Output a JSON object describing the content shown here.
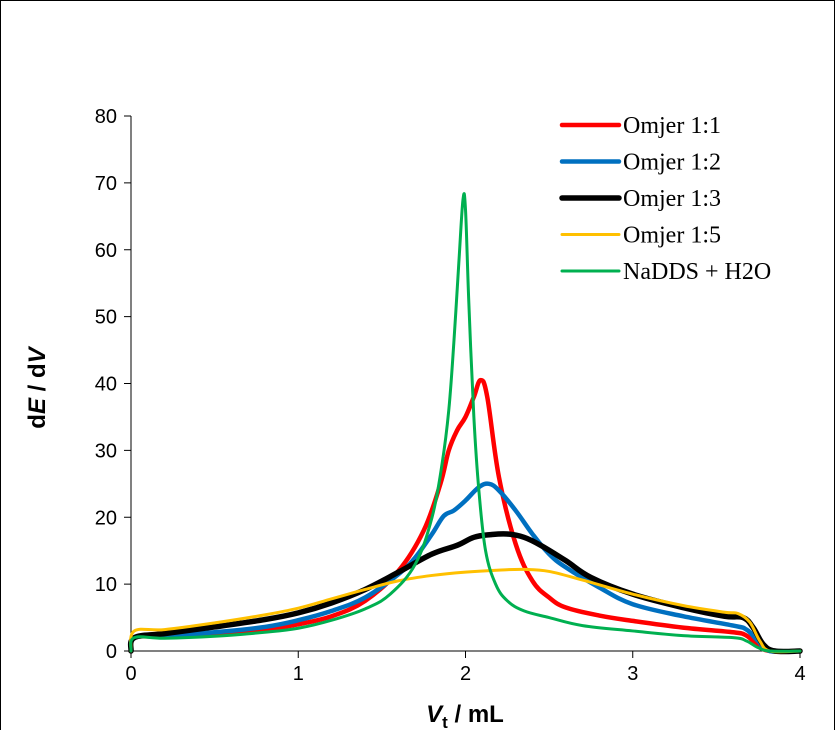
{
  "chart_data": {
    "type": "line",
    "title": "",
    "xlabel": {
      "main": "V",
      "sub": "t",
      "rest": " / mL"
    },
    "ylabel": {
      "pre": "d",
      "e": "E",
      "mid": " / d",
      "v": "V"
    },
    "xlim": [
      0,
      4
    ],
    "ylim": [
      0,
      80
    ],
    "x_ticks": [
      0,
      1,
      2,
      3,
      4
    ],
    "y_ticks": [
      0,
      10,
      20,
      30,
      40,
      50,
      60,
      70,
      80
    ],
    "grid": false,
    "legend_position": "top-right",
    "series": [
      {
        "name": "Omjer 1:1",
        "color": "#ff0000",
        "width": 4.5,
        "x": [
          0,
          0.02,
          0.2,
          0.5,
          0.8,
          1.0,
          1.2,
          1.4,
          1.6,
          1.75,
          1.85,
          1.9,
          1.95,
          2.0,
          2.05,
          2.09,
          2.13,
          2.2,
          2.3,
          2.4,
          2.5,
          2.6,
          2.8,
          3.0,
          3.3,
          3.6,
          3.68,
          3.75,
          3.82,
          4.0
        ],
        "y": [
          0,
          2,
          2.2,
          2.6,
          3.2,
          4.0,
          5.2,
          7.5,
          12,
          18,
          25,
          30,
          33,
          35,
          38,
          40.5,
          38,
          26,
          16,
          10.5,
          8,
          6.5,
          5.3,
          4.5,
          3.5,
          2.8,
          2.3,
          0.8,
          0,
          0
        ]
      },
      {
        "name": "Omjer 1:2",
        "color": "#0070c0",
        "width": 4.5,
        "x": [
          0,
          0.02,
          0.2,
          0.5,
          0.8,
          1.0,
          1.2,
          1.4,
          1.6,
          1.7,
          1.8,
          1.87,
          1.93,
          2.0,
          2.08,
          2.14,
          2.2,
          2.3,
          2.4,
          2.5,
          2.6,
          2.8,
          3.0,
          3.3,
          3.6,
          3.68,
          3.75,
          3.82,
          4.0
        ],
        "y": [
          0,
          2,
          2.3,
          2.8,
          3.6,
          4.6,
          6.0,
          8.0,
          11.5,
          14,
          17.5,
          20.2,
          21,
          22.5,
          24.5,
          25,
          24,
          21,
          17.5,
          14.5,
          12.5,
          9.5,
          7,
          5.2,
          3.8,
          3.2,
          1.5,
          0,
          0
        ]
      },
      {
        "name": "Omjer 1:3",
        "color": "#000000",
        "width": 5.5,
        "x": [
          0,
          0.02,
          0.2,
          0.5,
          0.8,
          1.0,
          1.2,
          1.4,
          1.6,
          1.8,
          1.95,
          2.05,
          2.15,
          2.25,
          2.35,
          2.45,
          2.6,
          2.75,
          3.0,
          3.3,
          3.55,
          3.66,
          3.72,
          3.78,
          3.85,
          4.0
        ],
        "y": [
          0,
          2,
          2.6,
          3.6,
          4.7,
          5.7,
          7.2,
          9.2,
          11.8,
          14.5,
          15.8,
          17.0,
          17.4,
          17.5,
          17.0,
          15.8,
          13.5,
          11.0,
          8.5,
          6.5,
          5.2,
          5.0,
          3.5,
          1.0,
          0,
          0
        ]
      },
      {
        "name": "Omjer 1:5",
        "color": "#ffc000",
        "width": 3,
        "x": [
          0,
          0.02,
          0.2,
          0.5,
          0.8,
          1.0,
          1.2,
          1.4,
          1.6,
          1.8,
          2.0,
          2.2,
          2.35,
          2.5,
          2.7,
          3.0,
          3.3,
          3.55,
          3.63,
          3.7,
          3.76,
          3.82,
          4.0
        ],
        "y": [
          0,
          3,
          3.2,
          4.2,
          5.4,
          6.4,
          7.8,
          9.2,
          10.5,
          11.3,
          11.8,
          12.1,
          12.2,
          11.9,
          10.6,
          8.5,
          6.8,
          5.8,
          5.6,
          4.3,
          1.5,
          0,
          0
        ]
      },
      {
        "name": "NaDDS + H2O",
        "color": "#00b050",
        "width": 3,
        "x": [
          0,
          0.02,
          0.2,
          0.5,
          0.8,
          1.0,
          1.2,
          1.4,
          1.55,
          1.7,
          1.8,
          1.86,
          1.9,
          1.93,
          1.96,
          1.985,
          2.0,
          2.02,
          2.05,
          2.08,
          2.12,
          2.18,
          2.25,
          2.35,
          2.5,
          2.7,
          3.0,
          3.3,
          3.6,
          3.68,
          3.75,
          3.82,
          4.0
        ],
        "y": [
          0,
          2,
          1.9,
          2.2,
          2.8,
          3.4,
          4.6,
          6.3,
          8.5,
          13,
          20,
          28,
          36,
          46,
          58,
          67.5,
          66,
          52,
          35,
          24,
          15,
          10,
          7.5,
          6,
          5,
          3.8,
          3.0,
          2.3,
          2.0,
          1.5,
          0.5,
          0,
          0
        ]
      }
    ]
  }
}
